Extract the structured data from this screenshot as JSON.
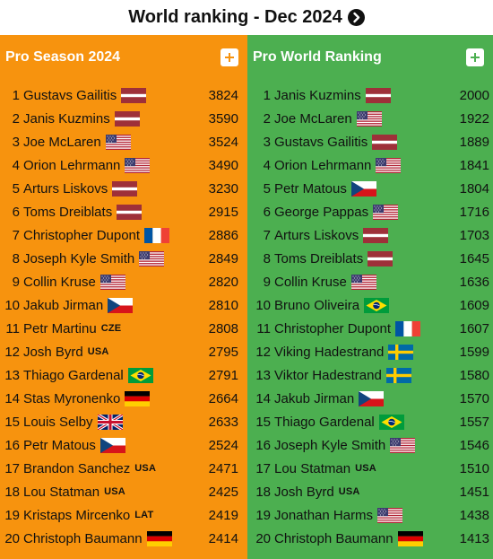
{
  "header": {
    "title": "World ranking - Dec 2024"
  },
  "season": {
    "title": "Pro Season 2024",
    "rows": [
      {
        "rank": "1",
        "name": "Gustavs Gailitis",
        "flag": "lv",
        "code": "",
        "score": "3824"
      },
      {
        "rank": "2",
        "name": "Janis Kuzmins",
        "flag": "lv",
        "code": "",
        "score": "3590"
      },
      {
        "rank": "3",
        "name": "Joe McLaren",
        "flag": "us",
        "code": "",
        "score": "3524"
      },
      {
        "rank": "4",
        "name": "Orion Lehrmann",
        "flag": "us",
        "code": "",
        "score": "3490"
      },
      {
        "rank": "5",
        "name": "Arturs Liskovs",
        "flag": "lv",
        "code": "",
        "score": "3230"
      },
      {
        "rank": "6",
        "name": "Toms Dreiblats",
        "flag": "lv",
        "code": "",
        "score": "2915"
      },
      {
        "rank": "7",
        "name": "Christopher Dupont",
        "flag": "fr",
        "code": "",
        "score": "2886"
      },
      {
        "rank": "8",
        "name": "Joseph Kyle Smith",
        "flag": "us",
        "code": "",
        "score": "2849"
      },
      {
        "rank": "9",
        "name": "Collin Kruse",
        "flag": "us",
        "code": "",
        "score": "2820"
      },
      {
        "rank": "10",
        "name": "Jakub Jirman",
        "flag": "cz",
        "code": "",
        "score": "2810"
      },
      {
        "rank": "11",
        "name": "Petr Martinu",
        "flag": "",
        "code": "CZE",
        "score": "2808"
      },
      {
        "rank": "12",
        "name": "Josh Byrd",
        "flag": "",
        "code": "USA",
        "score": "2795"
      },
      {
        "rank": "13",
        "name": "Thiago Gardenal",
        "flag": "br",
        "code": "",
        "score": "2791"
      },
      {
        "rank": "14",
        "name": "Stas Myronenko",
        "flag": "de",
        "code": "",
        "score": "2664"
      },
      {
        "rank": "15",
        "name": "Louis Selby",
        "flag": "gb",
        "code": "",
        "score": "2633"
      },
      {
        "rank": "16",
        "name": "Petr Matous",
        "flag": "cz",
        "code": "",
        "score": "2524"
      },
      {
        "rank": "17",
        "name": "Brandon Sanchez",
        "flag": "",
        "code": "USA",
        "score": "2471"
      },
      {
        "rank": "18",
        "name": "Lou Statman",
        "flag": "",
        "code": "USA",
        "score": "2425"
      },
      {
        "rank": "19",
        "name": "Kristaps Mircenko",
        "flag": "",
        "code": "LAT",
        "score": "2419"
      },
      {
        "rank": "20",
        "name": "Christoph Baumann",
        "flag": "de",
        "code": "",
        "score": "2414"
      }
    ]
  },
  "world": {
    "title": "Pro World Ranking",
    "rows": [
      {
        "rank": "1",
        "name": "Janis Kuzmins",
        "flag": "lv",
        "code": "",
        "score": "2000"
      },
      {
        "rank": "2",
        "name": "Joe McLaren",
        "flag": "us",
        "code": "",
        "score": "1922"
      },
      {
        "rank": "3",
        "name": "Gustavs Gailitis",
        "flag": "lv",
        "code": "",
        "score": "1889"
      },
      {
        "rank": "4",
        "name": "Orion Lehrmann",
        "flag": "us",
        "code": "",
        "score": "1841"
      },
      {
        "rank": "5",
        "name": "Petr Matous",
        "flag": "cz",
        "code": "",
        "score": "1804"
      },
      {
        "rank": "6",
        "name": "George Pappas",
        "flag": "us",
        "code": "",
        "score": "1716"
      },
      {
        "rank": "7",
        "name": "Arturs Liskovs",
        "flag": "lv",
        "code": "",
        "score": "1703"
      },
      {
        "rank": "8",
        "name": "Toms Dreiblats",
        "flag": "lv",
        "code": "",
        "score": "1645"
      },
      {
        "rank": "9",
        "name": "Collin Kruse",
        "flag": "us",
        "code": "",
        "score": "1636"
      },
      {
        "rank": "10",
        "name": "Bruno Oliveira",
        "flag": "br",
        "code": "",
        "score": "1609"
      },
      {
        "rank": "11",
        "name": "Christopher Dupont",
        "flag": "fr",
        "code": "",
        "score": "1607"
      },
      {
        "rank": "12",
        "name": "Viking Hadestrand",
        "flag": "se",
        "code": "",
        "score": "1599"
      },
      {
        "rank": "13",
        "name": "Viktor Hadestrand",
        "flag": "se",
        "code": "",
        "score": "1580"
      },
      {
        "rank": "14",
        "name": "Jakub Jirman",
        "flag": "cz",
        "code": "",
        "score": "1570"
      },
      {
        "rank": "15",
        "name": "Thiago Gardenal",
        "flag": "br",
        "code": "",
        "score": "1557"
      },
      {
        "rank": "16",
        "name": "Joseph Kyle Smith",
        "flag": "us",
        "code": "",
        "score": "1546"
      },
      {
        "rank": "17",
        "name": "Lou Statman",
        "flag": "",
        "code": "USA",
        "score": "1510"
      },
      {
        "rank": "18",
        "name": "Josh Byrd",
        "flag": "",
        "code": "USA",
        "score": "1451"
      },
      {
        "rank": "19",
        "name": "Jonathan Harms",
        "flag": "us",
        "code": "",
        "score": "1438"
      },
      {
        "rank": "20",
        "name": "Christoph Baumann",
        "flag": "de",
        "code": "",
        "score": "1413"
      }
    ]
  }
}
